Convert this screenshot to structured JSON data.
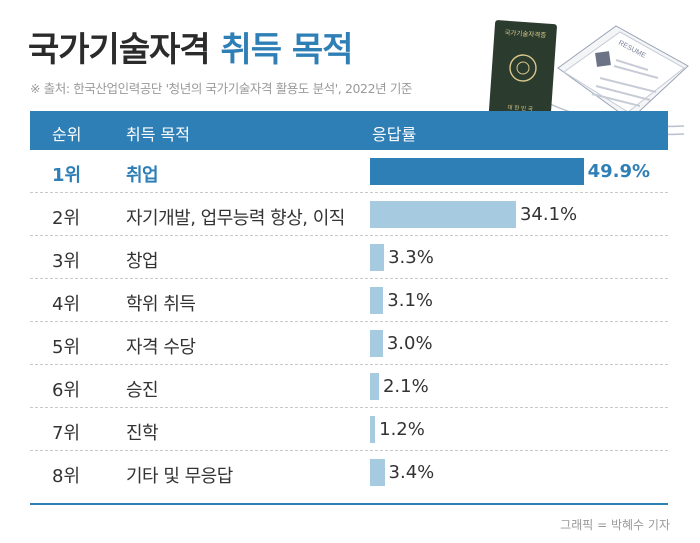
{
  "title": {
    "part1": "국가기술자격",
    "part2": "취득 목적"
  },
  "source": "※ 출처: 한국산업인력공단 '청년의 국가기술자격 활용도 분석', 2022년 기준",
  "header": {
    "rank": "순위",
    "purpose": "취득 목적",
    "rate": "응답률"
  },
  "illustration": {
    "passport_title": "국가기술자격증",
    "passport_sub": "대 한 민 국",
    "resume_title": "RESUME"
  },
  "credit": "그래픽 = 박혜수 기자",
  "colors": {
    "accent": "#2f7fb7",
    "bar_light": "#a6cadf",
    "passport": "#2b3b2e"
  },
  "chart_data": {
    "type": "bar",
    "orientation": "horizontal",
    "title": "국가기술자격 취득 목적",
    "categories": [
      "취업",
      "자기개발, 업무능력 향상, 이직",
      "창업",
      "학위 취득",
      "자격 수당",
      "승진",
      "진학",
      "기타 및 무응답"
    ],
    "ranks": [
      "1위",
      "2위",
      "3위",
      "4위",
      "5위",
      "6위",
      "7위",
      "8위"
    ],
    "values": [
      49.9,
      34.1,
      3.3,
      3.1,
      3.0,
      2.1,
      1.2,
      3.4
    ],
    "value_labels": [
      "49.9%",
      "34.1%",
      "3.3%",
      "3.1%",
      "3.0%",
      "2.1%",
      "1.2%",
      "3.4%"
    ],
    "xlim": [
      0,
      50
    ],
    "grid": false,
    "highlight_index": 0
  }
}
